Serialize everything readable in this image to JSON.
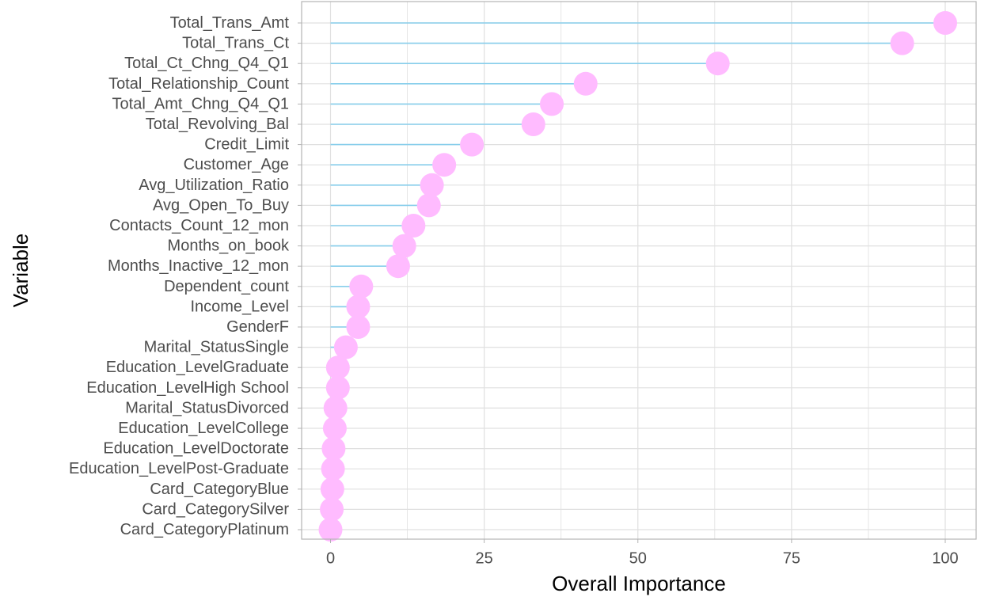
{
  "chart_data": {
    "type": "lollipop",
    "xlabel": "Overall Importance",
    "ylabel": "Variable",
    "xlim": [
      0,
      100
    ],
    "x_ticks": [
      0,
      25,
      50,
      75,
      100
    ],
    "grid": true,
    "colors": {
      "stem": "#87ceeb",
      "point": "#ffbbff",
      "grid": "#e0e0e0",
      "panel_border": "#b3b3b3",
      "tick_label": "#4d4d4d",
      "axis_title": "#000000"
    },
    "categories": [
      "Total_Trans_Amt",
      "Total_Trans_Ct",
      "Total_Ct_Chng_Q4_Q1",
      "Total_Relationship_Count",
      "Total_Amt_Chng_Q4_Q1",
      "Total_Revolving_Bal",
      "Credit_Limit",
      "Customer_Age",
      "Avg_Utilization_Ratio",
      "Avg_Open_To_Buy",
      "Contacts_Count_12_mon",
      "Months_on_book",
      "Months_Inactive_12_mon",
      "Dependent_count",
      "Income_Level",
      "GenderF",
      "Marital_StatusSingle",
      "Education_LevelGraduate",
      "Education_LevelHigh School",
      "Marital_StatusDivorced",
      "Education_LevelCollege",
      "Education_LevelDoctorate",
      "Education_LevelPost-Graduate",
      "Card_CategoryBlue",
      "Card_CategorySilver",
      "Card_CategoryPlatinum"
    ],
    "values": [
      100,
      93,
      63,
      41.5,
      36,
      33,
      23,
      18.5,
      16.5,
      16,
      13.5,
      12,
      11,
      5,
      4.5,
      4.5,
      2.5,
      1.2,
      1.2,
      0.8,
      0.7,
      0.5,
      0.4,
      0.3,
      0.2,
      0
    ]
  }
}
